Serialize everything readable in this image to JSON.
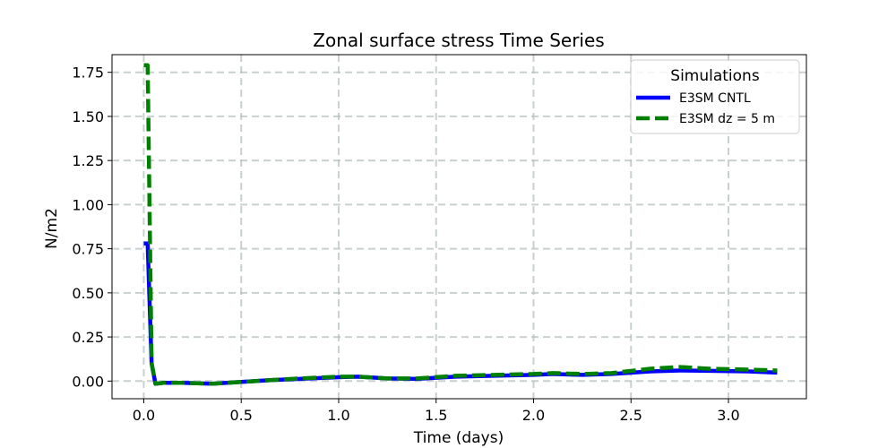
{
  "chart_data": {
    "type": "line",
    "title": "Zonal surface stress Time Series",
    "xlabel": "Time (days)",
    "ylabel": "N/m2",
    "xlim": [
      -0.163,
      3.4
    ],
    "ylim": [
      -0.1,
      1.85
    ],
    "xticks": [
      0.0,
      0.5,
      1.0,
      1.5,
      2.0,
      2.5,
      3.0
    ],
    "xtick_labels": [
      "0.0",
      "0.5",
      "1.0",
      "1.5",
      "2.0",
      "2.5",
      "3.0"
    ],
    "yticks": [
      0.0,
      0.25,
      0.5,
      0.75,
      1.0,
      1.25,
      1.5,
      1.75
    ],
    "ytick_labels": [
      "0.00",
      "0.25",
      "0.50",
      "0.75",
      "1.00",
      "1.25",
      "1.50",
      "1.75"
    ],
    "grid": true,
    "legend": {
      "title": "Simulations",
      "position": "top-right"
    },
    "series": [
      {
        "name": "E3SM CNTL",
        "color": "#0000ff",
        "style": "solid",
        "x": [
          0.0,
          0.02,
          0.04,
          0.06,
          0.1,
          0.2,
          0.35,
          0.5,
          0.65,
          0.8,
          1.0,
          1.1,
          1.25,
          1.4,
          1.6,
          1.8,
          2.0,
          2.1,
          2.25,
          2.4,
          2.6,
          2.75,
          2.9,
          3.1,
          3.25
        ],
        "y": [
          0.78,
          0.78,
          0.1,
          -0.015,
          -0.01,
          -0.01,
          -0.015,
          -0.005,
          0.005,
          0.012,
          0.022,
          0.025,
          0.015,
          0.012,
          0.025,
          0.03,
          0.035,
          0.04,
          0.035,
          0.04,
          0.055,
          0.06,
          0.058,
          0.055,
          0.048
        ]
      },
      {
        "name": "E3SM dz = 5 m",
        "color": "#008000",
        "style": "dashed",
        "x": [
          0.0,
          0.02,
          0.04,
          0.06,
          0.1,
          0.2,
          0.35,
          0.5,
          0.65,
          0.8,
          1.0,
          1.1,
          1.25,
          1.4,
          1.6,
          1.8,
          2.0,
          2.1,
          2.25,
          2.4,
          2.6,
          2.75,
          2.9,
          3.1,
          3.25
        ],
        "y": [
          1.79,
          1.79,
          0.1,
          -0.015,
          -0.01,
          -0.01,
          -0.015,
          -0.005,
          0.005,
          0.015,
          0.025,
          0.025,
          0.015,
          0.015,
          0.03,
          0.035,
          0.04,
          0.045,
          0.04,
          0.045,
          0.07,
          0.08,
          0.07,
          0.065,
          0.06
        ]
      }
    ]
  }
}
